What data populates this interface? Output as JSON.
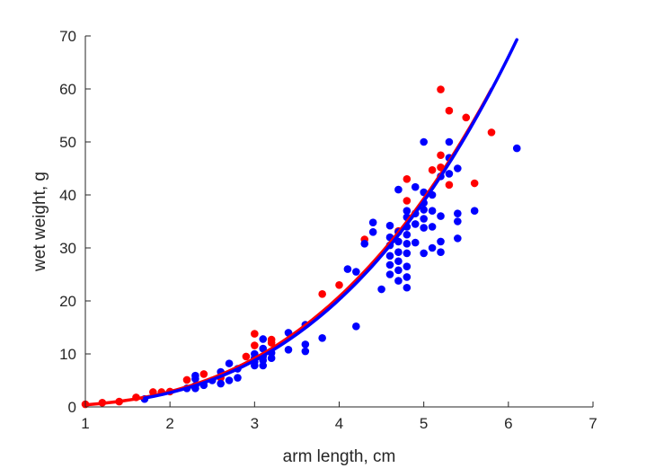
{
  "chart_data": {
    "type": "scatter",
    "xlabel": "arm length, cm",
    "ylabel": "wet weight, g",
    "xlim": [
      1,
      7
    ],
    "ylim": [
      0,
      70
    ],
    "xticks": [
      "1",
      "2",
      "3",
      "4",
      "5",
      "6",
      "7"
    ],
    "yticks": [
      "0",
      "10",
      "20",
      "30",
      "40",
      "50",
      "60",
      "70"
    ],
    "grid": false,
    "box": false,
    "series": [
      {
        "kind": "points",
        "color": "#ff0000",
        "points": [
          [
            1.0,
            0.5
          ],
          [
            1.2,
            0.8
          ],
          [
            1.4,
            1.0
          ],
          [
            1.6,
            1.8
          ],
          [
            1.8,
            2.8
          ],
          [
            1.9,
            2.8
          ],
          [
            2.0,
            2.9
          ],
          [
            2.2,
            5.1
          ],
          [
            2.4,
            6.2
          ],
          [
            2.6,
            5.5
          ],
          [
            2.9,
            9.5
          ],
          [
            3.0,
            11.6
          ],
          [
            3.0,
            13.8
          ],
          [
            3.2,
            12.1
          ],
          [
            3.2,
            12.7
          ],
          [
            3.8,
            21.3
          ],
          [
            4.0,
            23.0
          ],
          [
            4.3,
            31.6
          ],
          [
            4.8,
            43.0
          ],
          [
            4.8,
            38.9
          ],
          [
            5.1,
            44.7
          ],
          [
            5.2,
            59.9
          ],
          [
            5.2,
            47.5
          ],
          [
            5.2,
            45.2
          ],
          [
            5.3,
            55.9
          ],
          [
            5.3,
            41.9
          ],
          [
            5.5,
            54.6
          ],
          [
            5.6,
            42.2
          ],
          [
            5.8,
            51.8
          ],
          [
            4.7,
            33.2
          ]
        ]
      },
      {
        "kind": "points",
        "color": "#0000ff",
        "points": [
          [
            1.7,
            1.5
          ],
          [
            2.2,
            3.5
          ],
          [
            2.3,
            3.5
          ],
          [
            2.3,
            4.0
          ],
          [
            2.3,
            5.3
          ],
          [
            2.3,
            5.9
          ],
          [
            2.4,
            4.1
          ],
          [
            2.5,
            5.0
          ],
          [
            2.6,
            4.4
          ],
          [
            2.6,
            6.6
          ],
          [
            2.7,
            5.0
          ],
          [
            2.7,
            8.2
          ],
          [
            2.8,
            5.5
          ],
          [
            2.8,
            7.2
          ],
          [
            3.0,
            7.8
          ],
          [
            3.0,
            8.5
          ],
          [
            3.0,
            9.2
          ],
          [
            3.0,
            10.0
          ],
          [
            3.1,
            7.8
          ],
          [
            3.1,
            8.8
          ],
          [
            3.1,
            9.5
          ],
          [
            3.1,
            11.0
          ],
          [
            3.1,
            12.8
          ],
          [
            3.2,
            9.2
          ],
          [
            3.2,
            10.2
          ],
          [
            3.4,
            10.8
          ],
          [
            3.4,
            14.0
          ],
          [
            3.6,
            10.5
          ],
          [
            3.6,
            11.8
          ],
          [
            3.6,
            15.5
          ],
          [
            3.8,
            13.0
          ],
          [
            4.2,
            15.2
          ],
          [
            4.1,
            26.0
          ],
          [
            4.2,
            25.5
          ],
          [
            4.3,
            30.8
          ],
          [
            4.4,
            33.0
          ],
          [
            4.4,
            34.8
          ],
          [
            4.5,
            22.2
          ],
          [
            4.6,
            25.0
          ],
          [
            4.6,
            26.8
          ],
          [
            4.6,
            28.5
          ],
          [
            4.6,
            30.5
          ],
          [
            4.6,
            32.0
          ],
          [
            4.6,
            34.2
          ],
          [
            4.7,
            23.8
          ],
          [
            4.7,
            25.8
          ],
          [
            4.7,
            27.5
          ],
          [
            4.7,
            29.2
          ],
          [
            4.7,
            31.2
          ],
          [
            4.7,
            33.0
          ],
          [
            4.7,
            41.0
          ],
          [
            4.8,
            22.5
          ],
          [
            4.8,
            24.5
          ],
          [
            4.8,
            26.5
          ],
          [
            4.8,
            29.0
          ],
          [
            4.8,
            30.8
          ],
          [
            4.8,
            32.5
          ],
          [
            4.8,
            34.0
          ],
          [
            4.8,
            35.8
          ],
          [
            4.8,
            37.0
          ],
          [
            4.9,
            31.0
          ],
          [
            4.9,
            34.5
          ],
          [
            4.9,
            36.5
          ],
          [
            4.9,
            41.5
          ],
          [
            5.0,
            29.0
          ],
          [
            5.0,
            33.8
          ],
          [
            5.0,
            35.5
          ],
          [
            5.0,
            37.2
          ],
          [
            5.0,
            38.5
          ],
          [
            5.0,
            40.5
          ],
          [
            5.0,
            50.0
          ],
          [
            5.1,
            30.0
          ],
          [
            5.1,
            34.0
          ],
          [
            5.1,
            37.0
          ],
          [
            5.1,
            40.0
          ],
          [
            5.2,
            29.2
          ],
          [
            5.2,
            31.2
          ],
          [
            5.2,
            36.0
          ],
          [
            5.2,
            43.5
          ],
          [
            5.3,
            44.0
          ],
          [
            5.3,
            47.0
          ],
          [
            5.3,
            50.0
          ],
          [
            5.4,
            31.8
          ],
          [
            5.4,
            35.0
          ],
          [
            5.4,
            36.5
          ],
          [
            5.4,
            45.0
          ],
          [
            5.6,
            37.0
          ],
          [
            6.1,
            48.8
          ]
        ]
      },
      {
        "kind": "curve",
        "color": "#ff0000",
        "fit": {
          "a": 0.4,
          "b": 2.85,
          "xmin": 1.0,
          "xmax": 5.8
        }
      },
      {
        "kind": "curve",
        "color": "#0000ff",
        "fit": {
          "a": 0.356,
          "b": 2.915,
          "xmin": 1.7,
          "xmax": 6.1
        }
      }
    ]
  }
}
